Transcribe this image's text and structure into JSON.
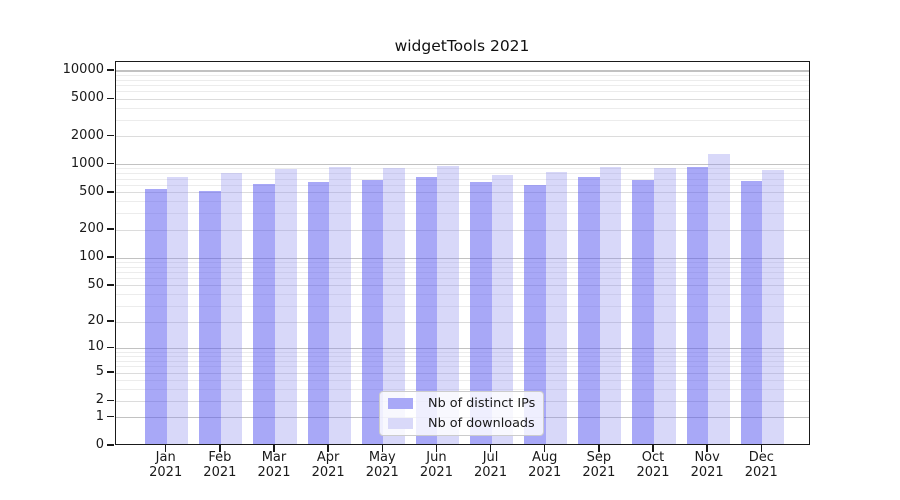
{
  "chart_data": {
    "type": "bar",
    "title": "widgetTools 2021",
    "xlabel": "",
    "ylabel": "",
    "x_year_label": "2021",
    "categories": [
      "Jan 2021",
      "Feb 2021",
      "Mar 2021",
      "Apr 2021",
      "May 2021",
      "Jun 2021",
      "Jul 2021",
      "Aug 2021",
      "Sep 2021",
      "Oct 2021",
      "Nov 2021",
      "Dec 2021"
    ],
    "months": [
      "Jan",
      "Feb",
      "Mar",
      "Apr",
      "May",
      "Jun",
      "Jul",
      "Aug",
      "Sep",
      "Oct",
      "Nov",
      "Dec"
    ],
    "series": [
      {
        "name": "Nb of distinct IPs",
        "color": "#a8a8f7",
        "fill": "rgba(88,88,240,0.52)",
        "values": [
          520,
          500,
          595,
          620,
          650,
          700,
          630,
          580,
          700,
          650,
          890,
          640
        ]
      },
      {
        "name": "Nb of downloads",
        "color": "#d9d9f9",
        "fill": "rgba(142,142,238,0.35)",
        "values": [
          710,
          780,
          860,
          895,
          880,
          930,
          745,
          790,
          895,
          875,
          1250,
          845
        ]
      }
    ],
    "y_axis": {
      "scale": "log1p",
      "ticks": [
        10000,
        5000,
        2000,
        1000,
        500,
        200,
        100,
        50,
        20,
        10,
        5,
        2,
        1,
        0
      ],
      "ylim": [
        0,
        12500
      ],
      "grid": "on"
    },
    "legend": {
      "position": "lower center",
      "entries": [
        "Nb of distinct IPs",
        "Nb of downloads"
      ]
    }
  }
}
